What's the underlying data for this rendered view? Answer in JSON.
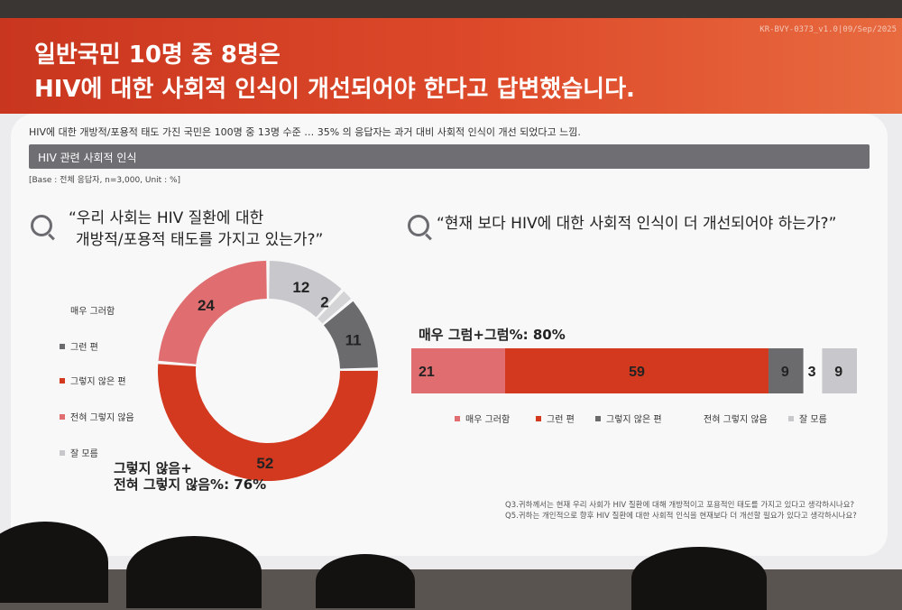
{
  "header": {
    "doc_code": "KR-BVY-0373_v1.0|09/Sep/2025",
    "title_line1": "일반국민 10명 중 8명은",
    "title_line2": "HIV에 대한 사회적 인식이 개선되어야 한다고 답변했습니다.",
    "colors": {
      "primary": "#d2391f"
    }
  },
  "summary": "HIV에 대한 개방적/포용적 태도 가진 국민은 100명 중 13명 수준 … 35% 의 응답자는 과거 대비 사회적 인식이 개선 되었다고 느낌.",
  "section_title": "HIV 관련 사회적 인식",
  "base_note": "[Base : 전체 응답자, n=3,000, Unit : %]",
  "left_question": {
    "line1": "“우리 사회는 HIV 질환에 대한",
    "line2": "개방적/포용적 태도를 가지고 있는가?”"
  },
  "right_question": "“현재 보다 HIV에 대한 사회적 인식이 더 개선되어야 하는가?”",
  "left_legend": [
    {
      "label": "매우 그러함",
      "color": ""
    },
    {
      "label": "그런 편",
      "color": "#6b6b6e"
    },
    {
      "label": "그렇지 않은 편",
      "color": "#d2391f"
    },
    {
      "label": "전혀 그렇지 않음",
      "color": "#e06e70"
    },
    {
      "label": "잘 모름",
      "color": "#c8c8cc"
    }
  ],
  "left_callout": {
    "line1": "그렇지 않음+",
    "line2": "전혀 그렇지 않음%: 76%"
  },
  "right_callout": "매우 그럼+그럼%: 80%",
  "right_legend": [
    {
      "label": "매우 그러함",
      "color": "#e06e70"
    },
    {
      "label": "그런 편",
      "color": "#d2391f"
    },
    {
      "label": "그렇지 않은 편",
      "color": "#6b6b6e"
    },
    {
      "label": "전혀 그렇지 않음",
      "color": ""
    },
    {
      "label": "잘 모름",
      "color": "#c8c8cc"
    }
  ],
  "footnotes": [
    "Q3.귀하께서는 현재 우리 사회가 HIV 질환에 대해 개방적이고 포용적인 태도를 가지고 있다고 생각하시나요?",
    "Q5.귀하는 개인적으로 향후 HIV 질환에 대한 사회적 인식을 현재보다 더 개선할 필요가 있다고 생각하시나요?"
  ],
  "chart_data": [
    {
      "type": "pie",
      "title": "“우리 사회는 HIV 질환에 대한 개방적/포용적 태도를 가지고 있는가?”",
      "slices": [
        {
          "label": "잘 모름",
          "value": 12,
          "color": "#c8c8cc"
        },
        {
          "label": "매우 그러함",
          "value": 2,
          "color": "#d4d4d6"
        },
        {
          "label": "그런 편",
          "value": 11,
          "color": "#6b6b6e"
        },
        {
          "label": "그렇지 않은 편",
          "value": 52,
          "color": "#d2391f"
        },
        {
          "label": "전혀 그렇지 않음",
          "value": 24,
          "color": "#e06e70"
        }
      ]
    },
    {
      "type": "bar",
      "orientation": "horizontal-stacked",
      "title": "“현재 보다 HIV에 대한 사회적 인식이 더 개선되어야 하는가?”",
      "segments": [
        {
          "label": "매우 그러함",
          "value": 21,
          "color": "#e06e70"
        },
        {
          "label": "그런 편",
          "value": 59,
          "color": "#d2391f"
        },
        {
          "label": "그렇지 않은 편",
          "value": 9,
          "color": "#6b6b6e"
        },
        {
          "label": "전혀 그렇지 않음",
          "value": 3,
          "color": ""
        },
        {
          "label": "잘 모름",
          "value": 9,
          "color": "#c8c8cc"
        }
      ]
    }
  ]
}
